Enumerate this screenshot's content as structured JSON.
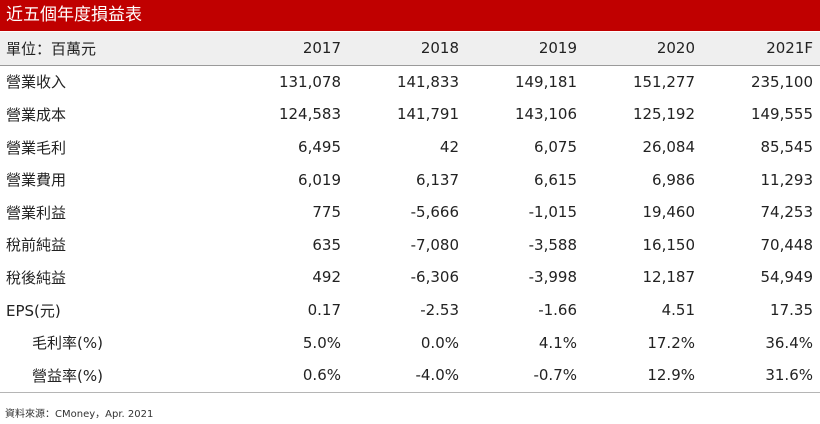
{
  "title": "近五個年度損益表",
  "header": {
    "unit_label": "單位：百萬元",
    "years": [
      "2017",
      "2018",
      "2019",
      "2020",
      "2021F"
    ]
  },
  "rows": [
    {
      "label": "營業收入",
      "values": [
        "131,078",
        "141,833",
        "149,181",
        "151,277",
        "235,100"
      ]
    },
    {
      "label": "營業成本",
      "values": [
        "124,583",
        "141,791",
        "143,106",
        "125,192",
        "149,555"
      ]
    },
    {
      "label": "營業毛利",
      "values": [
        "6,495",
        "42",
        "6,075",
        "26,084",
        "85,545"
      ]
    },
    {
      "label": "營業費用",
      "values": [
        "6,019",
        "6,137",
        "6,615",
        "6,986",
        "11,293"
      ]
    },
    {
      "label": "營業利益",
      "values": [
        "775",
        "-5,666",
        "-1,015",
        "19,460",
        "74,253"
      ]
    },
    {
      "label": "稅前純益",
      "values": [
        "635",
        "-7,080",
        "-3,588",
        "16,150",
        "70,448"
      ]
    },
    {
      "label": "稅後純益",
      "values": [
        "492",
        "-6,306",
        "-3,998",
        "12,187",
        "54,949"
      ]
    },
    {
      "label": "EPS(元)",
      "values": [
        "0.17",
        "-2.53",
        "-1.66",
        "4.51",
        "17.35"
      ]
    },
    {
      "label": "毛利率(%)",
      "values": [
        "5.0%",
        "0.0%",
        "4.1%",
        "17.2%",
        "36.4%"
      ]
    },
    {
      "label": "營益率(%)",
      "values": [
        "0.6%",
        "-4.0%",
        "-0.7%",
        "12.9%",
        "31.6%"
      ]
    }
  ],
  "source": "資料來源：CMoney，Apr. 2021",
  "colors": {
    "title_bg": "#c00000",
    "header_bg": "#efefef"
  }
}
